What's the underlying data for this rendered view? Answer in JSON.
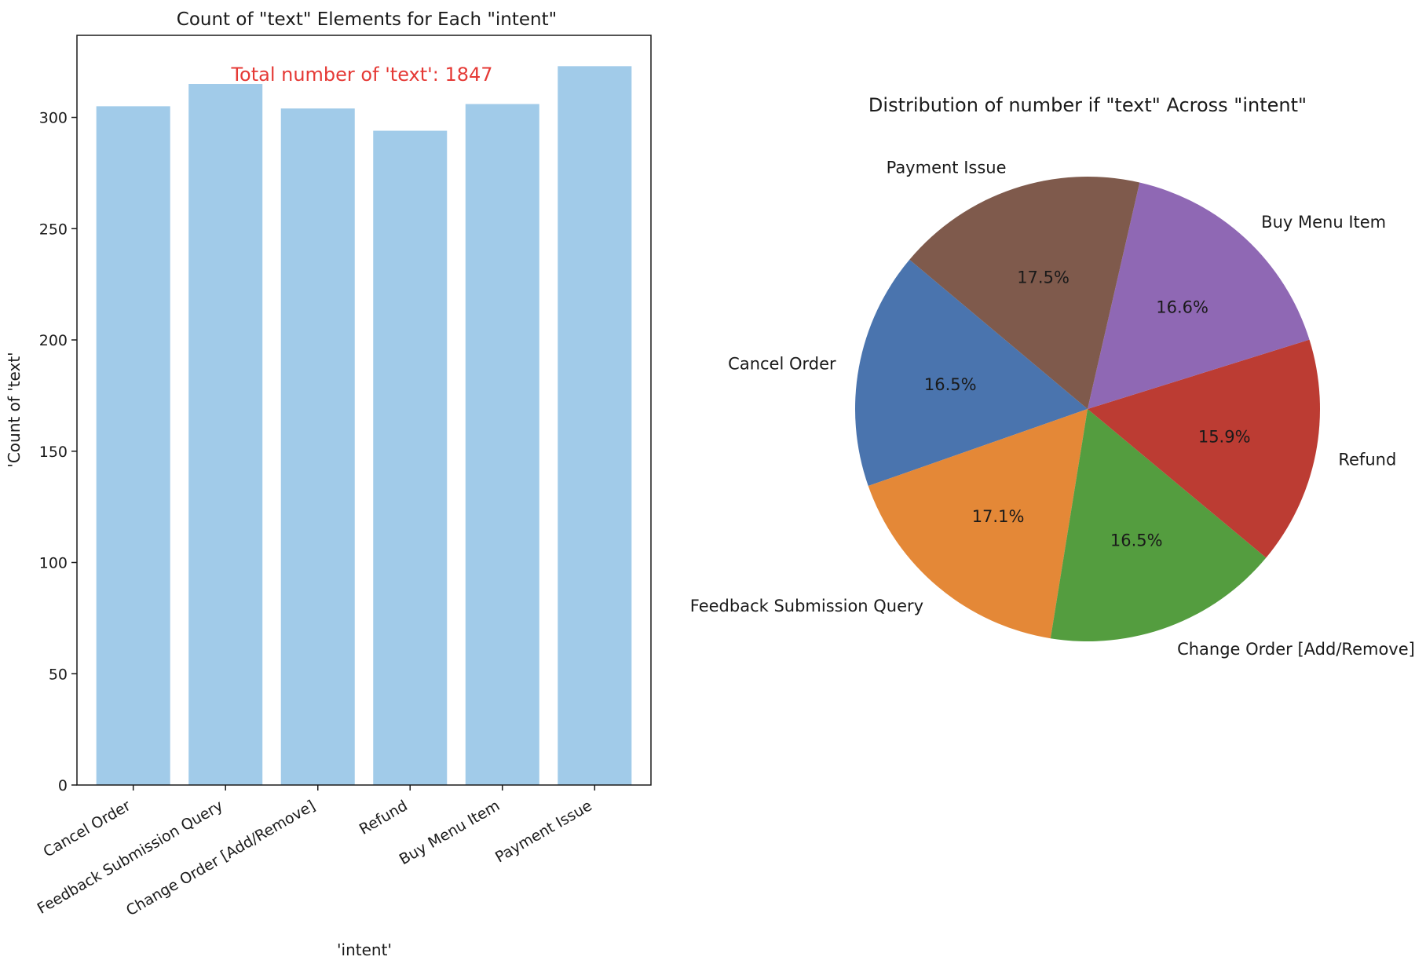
{
  "chart_data": [
    {
      "type": "bar",
      "title": "Count of \"text\" Elements for Each \"intent\"",
      "xlabel": "'intent'",
      "ylabel": "'Count of 'text'",
      "categories": [
        "Cancel Order",
        "Feedback Submission Query",
        "Change Order [Add/Remove]",
        "Refund",
        "Buy Menu Item",
        "Payment Issue"
      ],
      "values": [
        305,
        315,
        304,
        294,
        306,
        323
      ],
      "ylim": [
        0,
        340
      ],
      "yticks": [
        0,
        50,
        100,
        150,
        200,
        250,
        300
      ],
      "annotation": "Total number of 'text': 1847",
      "annotation_color": "#e53935",
      "bar_color": "#a1cbe9",
      "grid": false
    },
    {
      "type": "pie",
      "title": "Distribution of number if \"text\" Across \"intent\"",
      "labels": [
        "Cancel Order",
        "Feedback Submission Query",
        "Change Order [Add/Remove]",
        "Refund",
        "Buy Menu Item",
        "Payment Issue"
      ],
      "values": [
        16.5,
        17.1,
        16.5,
        15.9,
        16.6,
        17.5
      ],
      "pct_labels": [
        "16.5%",
        "17.1%",
        "16.5%",
        "15.9%",
        "16.6%",
        "17.5%"
      ],
      "colors": [
        "#4a74ae",
        "#e48837",
        "#549d3f",
        "#bc3c33",
        "#8f68b4",
        "#7f5a4c"
      ]
    }
  ]
}
